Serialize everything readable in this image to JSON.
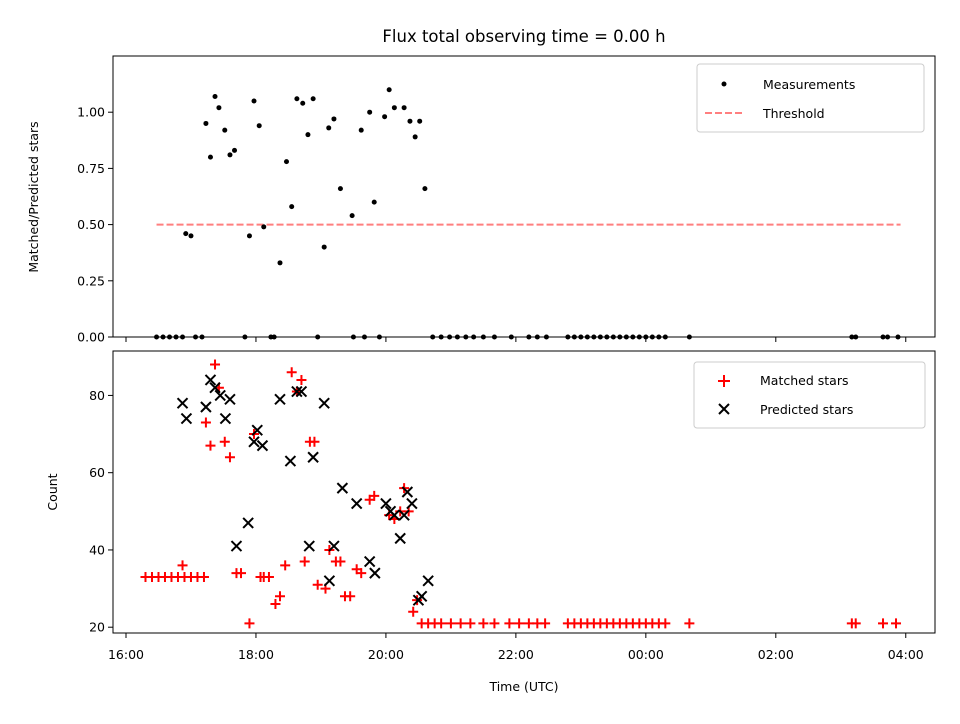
{
  "title": "Flux total observing time = 0.00 h",
  "colors": {
    "measurements": "#000000",
    "threshold": "#ff7f7f",
    "matched": "#ff0000",
    "predicted": "#000000"
  },
  "chart_data": [
    {
      "type": "scatter",
      "name": "ratio-panel",
      "ylabel": "Matched/Predicted stars",
      "ylim": [
        0,
        1.25
      ],
      "yticks": [
        0,
        0.25,
        0.5,
        0.75,
        1.0
      ],
      "ytick_labels": [
        "0.00",
        "0.25",
        "0.50",
        "0.75",
        "1.00"
      ],
      "legend": {
        "placement": "top-right",
        "measurements_label": "Measurements",
        "threshold_label": "Threshold"
      },
      "threshold": {
        "value": 0.5,
        "x_start": 16.47,
        "x_end": 27.92
      },
      "series": [
        {
          "name": "Measurements",
          "x": [
            16.47,
            16.57,
            16.67,
            16.77,
            16.87,
            17.07,
            17.17,
            16.92,
            17.0,
            17.23,
            17.3,
            17.37,
            17.43,
            17.52,
            17.6,
            17.67,
            17.9,
            17.97,
            18.05,
            18.12,
            18.37,
            18.47,
            18.55,
            18.63,
            18.72,
            18.8,
            18.88,
            19.05,
            19.12,
            19.2,
            19.3,
            19.48,
            19.62,
            19.75,
            19.82,
            19.98,
            20.05,
            20.13,
            20.28,
            20.37,
            20.45,
            20.52,
            20.6,
            17.83,
            18.23,
            18.28,
            18.95,
            19.5,
            19.67,
            19.9,
            20.72,
            20.85,
            20.98,
            21.1,
            21.23,
            21.35,
            21.5,
            21.67,
            21.93,
            22.2,
            22.33,
            22.47,
            22.8,
            22.9,
            23.0,
            23.1,
            23.2,
            23.3,
            23.4,
            23.5,
            23.6,
            23.7,
            23.8,
            23.9,
            24.0,
            24.1,
            24.2,
            24.3,
            24.67,
            27.17,
            27.23,
            27.65,
            27.72,
            27.88
          ],
          "y": [
            0,
            0,
            0,
            0,
            0,
            0,
            0,
            0.46,
            0.45,
            0.95,
            0.8,
            1.07,
            1.02,
            0.92,
            0.81,
            0.83,
            0.45,
            1.05,
            0.94,
            0.49,
            0.33,
            0.78,
            0.58,
            1.06,
            1.04,
            0.9,
            1.06,
            0.4,
            0.93,
            0.97,
            0.66,
            0.54,
            0.92,
            1.0,
            0.6,
            0.98,
            1.1,
            1.02,
            1.02,
            0.96,
            0.89,
            0.96,
            0.66,
            0,
            0,
            0,
            0,
            0,
            0,
            0,
            0,
            0,
            0,
            0,
            0,
            0,
            0,
            0,
            0,
            0,
            0,
            0,
            0,
            0,
            0,
            0,
            0,
            0,
            0,
            0,
            0,
            0,
            0,
            0,
            0,
            0,
            0,
            0,
            0,
            0,
            0,
            0,
            0,
            0
          ]
        }
      ]
    },
    {
      "type": "scatter",
      "name": "count-panel",
      "ylabel": "Count",
      "xlabel": "Time (UTC)",
      "xlim": [
        15.8,
        28.45
      ],
      "ylim": [
        18.5,
        91.5
      ],
      "yticks": [
        20,
        40,
        60,
        80
      ],
      "ytick_labels": [
        "20",
        "40",
        "60",
        "80"
      ],
      "xticks": [
        16,
        18,
        20,
        22,
        24,
        26,
        28
      ],
      "xtick_labels": [
        "16:00",
        "18:00",
        "20:00",
        "22:00",
        "00:00",
        "02:00",
        "04:00"
      ],
      "legend": {
        "placement": "top-right",
        "matched_label": "Matched stars",
        "predicted_label": "Predicted stars"
      },
      "series": [
        {
          "name": "Matched stars",
          "x": [
            16.3,
            16.4,
            16.5,
            16.6,
            16.7,
            16.8,
            16.9,
            17.0,
            17.1,
            17.2,
            16.87,
            17.23,
            17.3,
            17.37,
            17.43,
            17.52,
            17.6,
            17.7,
            17.77,
            17.9,
            17.97,
            18.07,
            18.12,
            18.2,
            18.3,
            18.37,
            18.45,
            18.55,
            18.63,
            18.7,
            18.75,
            18.83,
            18.9,
            18.95,
            19.07,
            19.13,
            19.23,
            19.3,
            19.37,
            19.45,
            19.55,
            19.62,
            19.75,
            19.82,
            20.05,
            20.13,
            20.22,
            20.28,
            20.35,
            20.42,
            20.48,
            20.55,
            20.65,
            20.75,
            20.85,
            21.0,
            21.15,
            21.3,
            21.5,
            21.67,
            21.9,
            22.05,
            22.2,
            22.33,
            22.45,
            22.8,
            22.9,
            23.0,
            23.1,
            23.2,
            23.3,
            23.4,
            23.5,
            23.6,
            23.7,
            23.8,
            23.9,
            24.0,
            24.1,
            24.2,
            24.3,
            24.67,
            27.17,
            27.23,
            27.65,
            27.85
          ],
          "y": [
            33,
            33,
            33,
            33,
            33,
            33,
            33,
            33,
            33,
            33,
            36,
            73,
            67,
            88,
            82,
            68,
            64,
            34,
            34,
            21,
            70,
            33,
            33,
            33,
            26,
            28,
            36,
            86,
            81,
            84,
            37,
            68,
            68,
            31,
            30,
            40,
            37,
            37,
            28,
            28,
            35,
            34,
            53,
            54,
            49,
            48,
            50,
            56,
            50,
            24,
            27,
            21,
            21,
            21,
            21,
            21,
            21,
            21,
            21,
            21,
            21,
            21,
            21,
            21,
            21,
            21,
            21,
            21,
            21,
            21,
            21,
            21,
            21,
            21,
            21,
            21,
            21,
            21,
            21,
            21,
            21,
            21,
            21,
            21,
            21,
            21
          ]
        },
        {
          "name": "Predicted stars",
          "x": [
            16.87,
            16.93,
            17.23,
            17.3,
            17.37,
            17.45,
            17.53,
            17.6,
            17.7,
            17.88,
            17.97,
            18.02,
            18.1,
            18.37,
            18.53,
            18.63,
            18.7,
            18.82,
            18.88,
            19.05,
            19.13,
            19.2,
            19.33,
            19.55,
            19.75,
            19.83,
            20.0,
            20.07,
            20.13,
            20.22,
            20.28,
            20.33,
            20.4,
            20.5,
            20.55,
            20.65
          ],
          "y": [
            78,
            74,
            77,
            84,
            82,
            80,
            74,
            79,
            41,
            47,
            68,
            71,
            67,
            79,
            63,
            81,
            81,
            41,
            64,
            78,
            32,
            41,
            56,
            52,
            37,
            34,
            52,
            50,
            49,
            43,
            49,
            55,
            52,
            27,
            28,
            32
          ]
        }
      ]
    }
  ]
}
